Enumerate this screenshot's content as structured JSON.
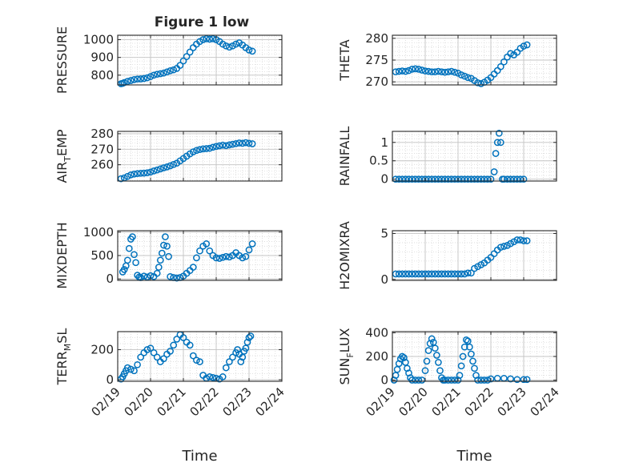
{
  "title": "Figure 1 low",
  "xlabel": "Time",
  "x_ticks": [
    "02/19",
    "02/20",
    "02/21",
    "02/22",
    "02/23",
    "02/24"
  ],
  "marker_color": "#0072BD",
  "chart_data": [
    {
      "type": "scatter",
      "name": "pressure",
      "ylabel": "PRESSURE",
      "yticks": [
        "800",
        "900",
        "1000"
      ],
      "ytick_values": [
        800,
        900,
        1000
      ],
      "ylim": [
        745,
        1025
      ],
      "x": [
        0.1,
        0.15,
        0.2,
        0.3,
        0.4,
        0.5,
        0.6,
        0.7,
        0.8,
        0.9,
        1.0,
        1.1,
        1.2,
        1.3,
        1.4,
        1.5,
        1.6,
        1.7,
        1.8,
        1.9,
        2.0,
        2.1,
        2.2,
        2.3,
        2.4,
        2.5,
        2.6,
        2.7,
        2.8,
        2.9,
        3.0,
        3.1,
        3.2,
        3.3,
        3.4,
        3.5,
        3.6,
        3.7,
        3.8,
        3.9,
        4.0,
        4.1
      ],
      "y": [
        752,
        754,
        758,
        765,
        770,
        775,
        778,
        779,
        781,
        785,
        792,
        800,
        805,
        808,
        812,
        818,
        825,
        830,
        838,
        855,
        880,
        905,
        930,
        955,
        975,
        990,
        1000,
        1005,
        1003,
        1005,
        1000,
        990,
        975,
        965,
        958,
        965,
        975,
        982,
        970,
        955,
        942,
        935
      ]
    },
    {
      "type": "scatter",
      "name": "theta",
      "ylabel": "THETA",
      "yticks": [
        "270",
        "275",
        "280"
      ],
      "ytick_values": [
        270,
        275,
        280
      ],
      "ylim": [
        269.3,
        280.7
      ],
      "x": [
        0.1,
        0.2,
        0.3,
        0.4,
        0.5,
        0.6,
        0.7,
        0.8,
        0.9,
        1.0,
        1.1,
        1.2,
        1.3,
        1.4,
        1.5,
        1.6,
        1.7,
        1.8,
        1.9,
        2.0,
        2.1,
        2.2,
        2.3,
        2.4,
        2.5,
        2.6,
        2.7,
        2.8,
        2.9,
        3.0,
        3.1,
        3.2,
        3.3,
        3.4,
        3.5,
        3.6,
        3.7,
        3.8,
        3.9,
        4.0,
        4.1
      ],
      "y": [
        272.3,
        272.4,
        272.5,
        272.4,
        272.6,
        272.9,
        273.0,
        272.9,
        272.7,
        272.5,
        272.4,
        272.3,
        272.3,
        272.4,
        272.3,
        272.2,
        272.3,
        272.4,
        272.2,
        272.0,
        271.6,
        271.3,
        271.0,
        270.8,
        270.3,
        269.8,
        269.6,
        269.9,
        270.4,
        271.0,
        271.8,
        272.6,
        273.5,
        274.6,
        275.7,
        276.5,
        276.2,
        276.8,
        277.7,
        278.2,
        278.5
      ]
    },
    {
      "type": "scatter",
      "name": "air-temp",
      "ylabel": "AIR_TEMP",
      "yticks": [
        "260",
        "270",
        "280"
      ],
      "ytick_values": [
        260,
        270,
        280
      ],
      "ylim": [
        249.5,
        281.5
      ],
      "x": [
        0.1,
        0.2,
        0.3,
        0.4,
        0.5,
        0.6,
        0.7,
        0.8,
        0.9,
        1.0,
        1.1,
        1.2,
        1.3,
        1.4,
        1.5,
        1.6,
        1.7,
        1.8,
        1.9,
        2.0,
        2.1,
        2.2,
        2.3,
        2.4,
        2.5,
        2.6,
        2.7,
        2.8,
        2.9,
        3.0,
        3.1,
        3.2,
        3.3,
        3.4,
        3.5,
        3.6,
        3.7,
        3.8,
        3.9,
        4.0,
        4.1
      ],
      "y": [
        251,
        251.5,
        252.5,
        253.5,
        254,
        254.3,
        254.5,
        254.6,
        254.8,
        255.3,
        256,
        256.6,
        257.3,
        258,
        258.6,
        259.3,
        260.2,
        261,
        262.5,
        264,
        265.5,
        267,
        268.3,
        269.2,
        269.8,
        270.2,
        270.4,
        270.6,
        271.3,
        271.8,
        272.2,
        272.6,
        272.3,
        272.8,
        273.2,
        273.6,
        274.0,
        273.8,
        274.2,
        273.8,
        273.5
      ]
    },
    {
      "type": "scatter",
      "name": "rainfall",
      "ylabel": "RAINFALL",
      "yticks": [
        "0",
        "0.5",
        "1"
      ],
      "ytick_values": [
        0,
        0.5,
        1
      ],
      "ylim": [
        -0.05,
        1.3
      ],
      "x": [
        0.1,
        0.2,
        0.3,
        0.4,
        0.5,
        0.6,
        0.7,
        0.8,
        0.9,
        1.0,
        1.1,
        1.2,
        1.3,
        1.4,
        1.5,
        1.6,
        1.7,
        1.8,
        1.9,
        2.0,
        2.1,
        2.2,
        2.3,
        2.4,
        2.5,
        2.6,
        2.7,
        2.8,
        2.9,
        3.0,
        3.1,
        3.15,
        3.2,
        3.25,
        3.3,
        3.35,
        3.4,
        3.5,
        3.6,
        3.7,
        3.8,
        3.9,
        4.0
      ],
      "y": [
        0,
        0,
        0,
        0,
        0,
        0,
        0,
        0,
        0,
        0,
        0,
        0,
        0,
        0,
        0,
        0,
        0,
        0,
        0,
        0,
        0,
        0,
        0,
        0,
        0,
        0,
        0,
        0,
        0,
        0,
        0.2,
        0.7,
        1.0,
        1.25,
        1.0,
        0,
        0,
        0,
        0,
        0,
        0,
        0,
        0
      ]
    },
    {
      "type": "scatter",
      "name": "mixdepth",
      "ylabel": "MIXDEPTH",
      "yticks": [
        "0",
        "500",
        "1000"
      ],
      "ytick_values": [
        0,
        500,
        1000
      ],
      "ylim": [
        -30,
        1030
      ],
      "x": [
        0.15,
        0.2,
        0.25,
        0.3,
        0.35,
        0.4,
        0.45,
        0.5,
        0.55,
        0.6,
        0.65,
        0.7,
        0.8,
        0.9,
        1.0,
        1.1,
        1.2,
        1.25,
        1.3,
        1.35,
        1.4,
        1.45,
        1.5,
        1.55,
        1.6,
        1.7,
        1.8,
        1.9,
        2.0,
        2.1,
        2.2,
        2.3,
        2.4,
        2.5,
        2.6,
        2.7,
        2.8,
        2.9,
        3.0,
        3.1,
        3.2,
        3.3,
        3.4,
        3.5,
        3.6,
        3.7,
        3.8,
        3.9,
        4.0,
        4.1
      ],
      "y": [
        150,
        200,
        280,
        400,
        650,
        850,
        900,
        520,
        350,
        80,
        40,
        30,
        60,
        40,
        70,
        50,
        120,
        250,
        400,
        550,
        720,
        900,
        700,
        480,
        50,
        30,
        20,
        30,
        60,
        120,
        180,
        250,
        450,
        600,
        700,
        750,
        600,
        500,
        450,
        440,
        460,
        480,
        470,
        500,
        560,
        500,
        450,
        480,
        620,
        750
      ]
    },
    {
      "type": "scatter",
      "name": "h2o-mixing-ratio",
      "ylabel": "H2OMIXRA",
      "yticks": [
        "0",
        "5"
      ],
      "ytick_values": [
        0,
        5
      ],
      "ylim": [
        -0.1,
        5.3
      ],
      "x": [
        0.1,
        0.2,
        0.3,
        0.4,
        0.5,
        0.6,
        0.7,
        0.8,
        0.9,
        1.0,
        1.1,
        1.2,
        1.3,
        1.4,
        1.5,
        1.6,
        1.7,
        1.8,
        1.9,
        2.0,
        2.1,
        2.2,
        2.3,
        2.4,
        2.5,
        2.6,
        2.7,
        2.8,
        2.9,
        3.0,
        3.1,
        3.2,
        3.3,
        3.4,
        3.5,
        3.6,
        3.7,
        3.8,
        3.9,
        4.0,
        4.1
      ],
      "y": [
        0.6,
        0.6,
        0.6,
        0.6,
        0.6,
        0.6,
        0.6,
        0.6,
        0.6,
        0.6,
        0.6,
        0.6,
        0.6,
        0.6,
        0.6,
        0.6,
        0.6,
        0.6,
        0.6,
        0.6,
        0.6,
        0.6,
        0.7,
        0.7,
        1.2,
        1.4,
        1.6,
        1.8,
        2.1,
        2.4,
        2.8,
        3.2,
        3.5,
        3.6,
        3.7,
        3.9,
        4.1,
        4.3,
        4.3,
        4.2,
        4.2
      ]
    },
    {
      "type": "scatter",
      "name": "terrain-msl",
      "ylabel": "TERR_MSL",
      "yticks": [
        "0",
        "200"
      ],
      "ytick_values": [
        0,
        200
      ],
      "ylim": [
        -10,
        320
      ],
      "x": [
        0.1,
        0.15,
        0.2,
        0.25,
        0.3,
        0.4,
        0.5,
        0.6,
        0.7,
        0.8,
        0.9,
        1.0,
        1.1,
        1.2,
        1.3,
        1.4,
        1.5,
        1.6,
        1.7,
        1.8,
        1.9,
        2.0,
        2.1,
        2.2,
        2.3,
        2.4,
        2.5,
        2.6,
        2.7,
        2.8,
        2.9,
        3.0,
        3.1,
        3.2,
        3.3,
        3.4,
        3.5,
        3.6,
        3.65,
        3.7,
        3.75,
        3.8,
        3.85,
        3.9,
        3.95,
        4.0,
        4.05
      ],
      "y": [
        5,
        20,
        40,
        60,
        80,
        70,
        60,
        100,
        150,
        180,
        200,
        210,
        180,
        150,
        120,
        140,
        170,
        190,
        230,
        270,
        300,
        280,
        250,
        230,
        160,
        130,
        120,
        30,
        10,
        20,
        15,
        10,
        5,
        20,
        80,
        120,
        150,
        180,
        200,
        170,
        120,
        150,
        190,
        210,
        250,
        280,
        290
      ]
    },
    {
      "type": "scatter",
      "name": "sun-flux",
      "ylabel": "SUN_FLUX",
      "yticks": [
        "0",
        "200",
        "400"
      ],
      "ytick_values": [
        0,
        200,
        400
      ],
      "ylim": [
        -10,
        410
      ],
      "x": [
        0.05,
        0.1,
        0.15,
        0.2,
        0.25,
        0.3,
        0.35,
        0.4,
        0.45,
        0.5,
        0.55,
        0.6,
        0.7,
        0.8,
        0.9,
        1.0,
        1.05,
        1.1,
        1.15,
        1.2,
        1.25,
        1.3,
        1.35,
        1.4,
        1.45,
        1.5,
        1.55,
        1.6,
        1.7,
        1.8,
        1.9,
        2.0,
        2.05,
        2.1,
        2.15,
        2.2,
        2.25,
        2.3,
        2.35,
        2.4,
        2.45,
        2.5,
        2.55,
        2.6,
        2.7,
        2.8,
        2.9,
        3.0,
        3.2,
        3.4,
        3.6,
        3.8,
        4.0,
        4.1
      ],
      "y": [
        0,
        40,
        90,
        140,
        180,
        200,
        190,
        150,
        100,
        60,
        20,
        0,
        0,
        0,
        0,
        80,
        160,
        250,
        310,
        350,
        320,
        270,
        210,
        150,
        80,
        20,
        0,
        0,
        0,
        0,
        0,
        0,
        40,
        120,
        200,
        280,
        340,
        330,
        280,
        220,
        160,
        100,
        40,
        0,
        0,
        0,
        0,
        10,
        15,
        15,
        10,
        5,
        5,
        5
      ]
    }
  ]
}
